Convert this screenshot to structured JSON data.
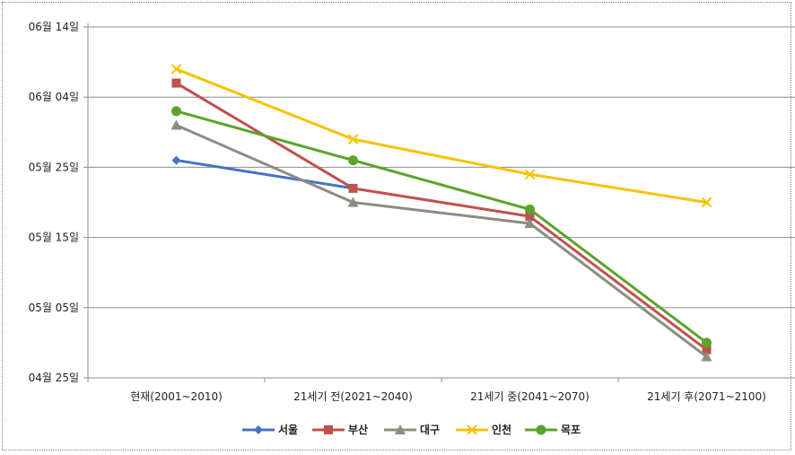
{
  "chart_data": {
    "type": "line",
    "title": "",
    "xlabel": "",
    "ylabel": "",
    "categories": [
      "현재(2001~2010)",
      "21세기 전(2021~2040)",
      "21세기 중(2041~2070)",
      "21세기 후(2071~2100)"
    ],
    "y_tick_labels": [
      "04월 25일",
      "05월 05일",
      "05월 15일",
      "05월 25일",
      "06월 04일",
      "06월 14일"
    ],
    "y_ticks": [
      "04-25",
      "05-05",
      "05-15",
      "05-25",
      "06-04",
      "06-14"
    ],
    "ylim": [
      "04-25",
      "06-14"
    ],
    "grid": true,
    "legend_position": "bottom",
    "series": [
      {
        "name": "서울",
        "color": "#4472C4",
        "marker": "diamond",
        "values": [
          "05-26",
          "05-22",
          null,
          null
        ]
      },
      {
        "name": "부산",
        "color": "#C0504D",
        "marker": "square",
        "values": [
          "06-06",
          "05-22",
          "05-18",
          "04-29"
        ]
      },
      {
        "name": "대구",
        "color": "#8C8C80",
        "marker": "triangle",
        "values": [
          "05-31",
          "05-20",
          "05-17",
          "04-28"
        ]
      },
      {
        "name": "인천",
        "color": "#F5C300",
        "marker": "x",
        "values": [
          "06-08",
          "05-29",
          "05-24",
          "05-20"
        ]
      },
      {
        "name": "목포",
        "color": "#5BA32B",
        "marker": "circle",
        "values": [
          "06-02",
          "05-26",
          "05-19",
          "04-30"
        ]
      }
    ]
  }
}
